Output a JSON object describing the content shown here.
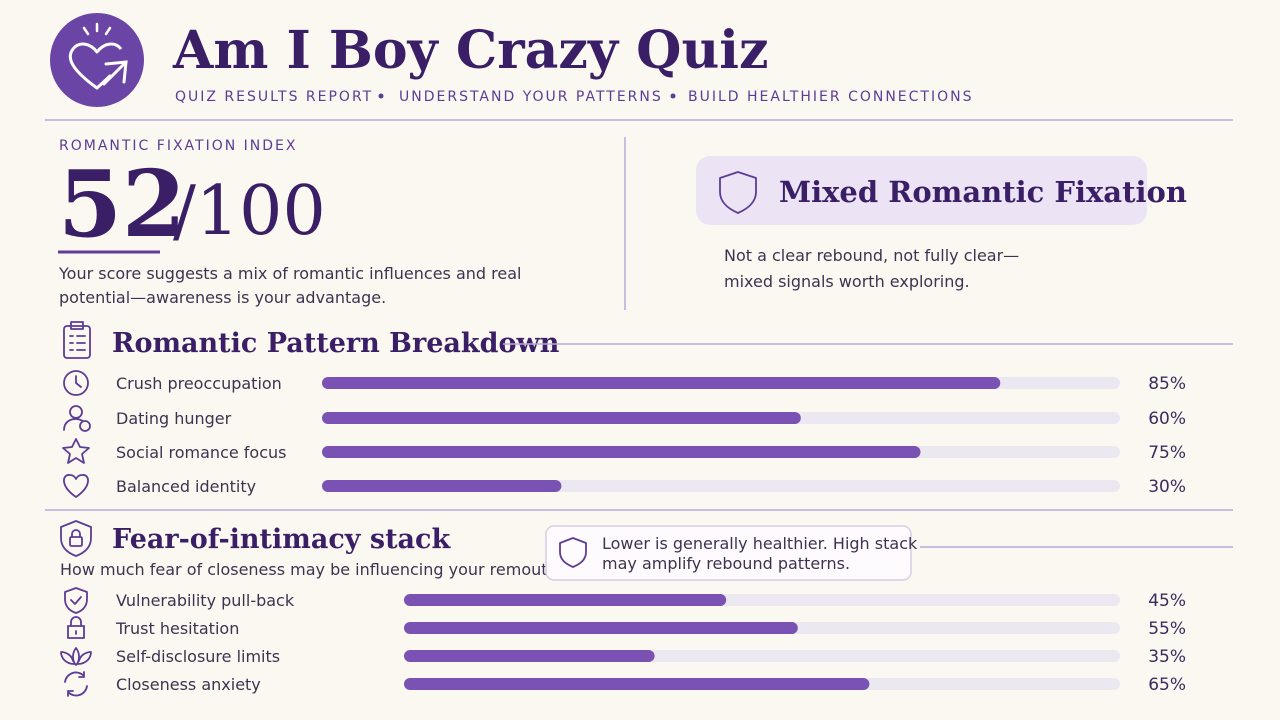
{
  "header": {
    "title": "Am I Boy Crazy Quiz",
    "tagline": [
      "QUIZ RESULTS REPORT",
      "UNDERSTAND YOUR PATTERNS",
      "BUILD HEALTHIER CONNECTIONS"
    ]
  },
  "score": {
    "label": "ROMANTIC FIXATION INDEX",
    "value": 52,
    "out_of": "/100",
    "description": [
      "Your score suggests a mix of romantic influences and real",
      "potential—awareness is your advantage."
    ]
  },
  "result": {
    "badge": "Mixed Romantic Fixation",
    "description": [
      "Not a clear rebound, not fully clear—",
      "mixed signals worth exploring."
    ]
  },
  "breakdown": {
    "title": "Romantic Pattern Breakdown",
    "xlim": [
      0,
      100
    ],
    "items": [
      {
        "label": "Crush preoccupation",
        "value": 85,
        "value_label": "85%"
      },
      {
        "label": "Dating hunger",
        "value": 60,
        "value_label": "60%"
      },
      {
        "label": "Social romance focus",
        "value": 75,
        "value_label": "75%"
      },
      {
        "label": "Balanced identity",
        "value": 30,
        "value_label": "30%"
      }
    ]
  },
  "intimacy": {
    "title": "Fear-of-intimacy stack",
    "subtitle": "How much fear of closeness may be influencing your remoutic pattern.",
    "note": [
      "Lower is generally healthier. High stack",
      "may amplify rebound patterns."
    ],
    "xlim": [
      0,
      100
    ],
    "items": [
      {
        "label": "Vulnerability pull-back",
        "value": 45,
        "value_label": "45%"
      },
      {
        "label": "Trust hesitation",
        "value": 55,
        "value_label": "55%"
      },
      {
        "label": "Self-disclosure limits",
        "value": 35,
        "value_label": "35%"
      },
      {
        "label": "Closeness anxiety",
        "value": 65,
        "value_label": "65%"
      }
    ]
  }
}
